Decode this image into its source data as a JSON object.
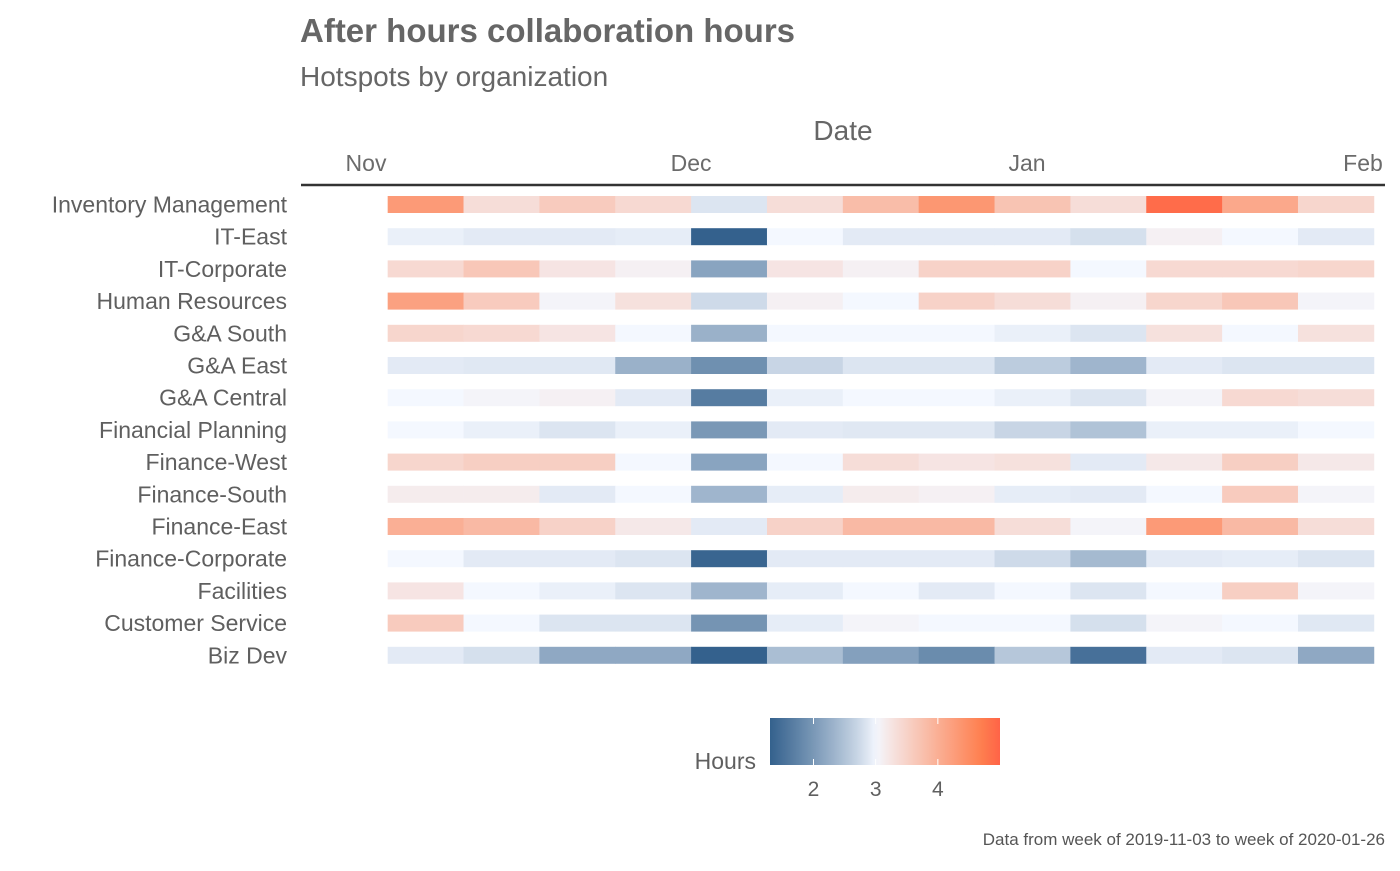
{
  "chart_data": {
    "type": "heatmap",
    "title": "After hours collaboration hours",
    "subtitle": "Hotspots by organization",
    "xlabel": "Date",
    "x_axis_position": "top",
    "x_tick_labels": [
      "Nov",
      "Dec",
      "Jan",
      "Feb"
    ],
    "x_tick_dates": [
      "2019-11-01",
      "2019-12-01",
      "2020-01-01",
      "2020-02-01"
    ],
    "x": [
      "2019-11-03",
      "2019-11-10",
      "2019-11-17",
      "2019-11-24",
      "2019-12-01",
      "2019-12-08",
      "2019-12-15",
      "2019-12-22",
      "2019-12-29",
      "2020-01-05",
      "2020-01-12",
      "2020-01-19",
      "2020-01-26"
    ],
    "categories": [
      "Inventory Management",
      "IT-East",
      "IT-Corporate",
      "Human Resources",
      "G&A South",
      "G&A East",
      "G&A Central",
      "Financial Planning",
      "Finance-West",
      "Finance-South",
      "Finance-East",
      "Finance-Corporate",
      "Facilities",
      "Customer Service",
      "Biz Dev"
    ],
    "values": [
      [
        4.3,
        3.35,
        3.6,
        3.4,
        2.85,
        3.35,
        3.8,
        4.35,
        3.7,
        3.35,
        4.9,
        4.1,
        3.45
      ],
      [
        2.95,
        2.9,
        2.9,
        2.92,
        1.3,
        3.0,
        2.9,
        2.9,
        2.9,
        2.8,
        3.1,
        3.0,
        2.9
      ],
      [
        3.4,
        3.65,
        3.25,
        3.1,
        2.15,
        3.25,
        3.1,
        3.5,
        3.5,
        3.0,
        3.4,
        3.4,
        3.45
      ],
      [
        4.2,
        3.6,
        3.05,
        3.3,
        2.75,
        3.1,
        3.0,
        3.5,
        3.35,
        3.1,
        3.45,
        3.65,
        3.05
      ],
      [
        3.45,
        3.4,
        3.25,
        3.0,
        2.3,
        3.0,
        3.0,
        3.0,
        2.95,
        2.85,
        3.3,
        3.0,
        3.3
      ],
      [
        2.9,
        2.88,
        2.88,
        2.3,
        1.9,
        2.7,
        2.85,
        2.85,
        2.6,
        2.35,
        2.9,
        2.85,
        2.85
      ],
      [
        3.0,
        3.05,
        3.1,
        2.9,
        1.65,
        2.95,
        3.0,
        3.0,
        2.95,
        2.85,
        3.05,
        3.4,
        3.35
      ],
      [
        3.0,
        2.95,
        2.85,
        2.95,
        2.0,
        2.9,
        2.88,
        2.88,
        2.7,
        2.5,
        2.95,
        2.95,
        3.0
      ],
      [
        3.45,
        3.55,
        3.55,
        3.0,
        2.15,
        3.0,
        3.35,
        3.25,
        3.3,
        2.9,
        3.2,
        3.55,
        3.2
      ],
      [
        3.15,
        3.15,
        2.9,
        3.0,
        2.35,
        2.92,
        3.15,
        3.1,
        2.92,
        2.9,
        3.0,
        3.6,
        3.05
      ],
      [
        4.0,
        3.85,
        3.5,
        3.2,
        2.9,
        3.5,
        3.85,
        3.85,
        3.35,
        3.05,
        4.3,
        3.85,
        3.35
      ],
      [
        3.0,
        2.9,
        2.9,
        2.85,
        1.35,
        2.9,
        2.9,
        2.9,
        2.75,
        2.4,
        2.9,
        2.92,
        2.85
      ],
      [
        3.25,
        3.0,
        2.95,
        2.85,
        2.35,
        2.92,
        3.0,
        2.9,
        3.0,
        2.85,
        3.0,
        3.55,
        3.05
      ],
      [
        3.6,
        3.0,
        2.85,
        2.85,
        1.95,
        2.92,
        3.05,
        3.0,
        3.0,
        2.8,
        3.05,
        3.0,
        2.88
      ],
      [
        2.9,
        2.8,
        2.2,
        2.2,
        1.15,
        2.45,
        2.1,
        1.85,
        2.55,
        1.5,
        2.9,
        2.85,
        2.2
      ]
    ],
    "legend": {
      "title": "Hours",
      "position": "bottom",
      "ticks": [
        2,
        3,
        4
      ],
      "range": [
        1.3,
        5.0
      ],
      "midpoint": 3.0,
      "low_color": "#34618D",
      "mid_color": "#F4F8FF",
      "high_color": "#FE7F4F",
      "peak_color": "#FF6347"
    },
    "caption": "Data from week of 2019-11-03 to week of 2020-01-26"
  }
}
